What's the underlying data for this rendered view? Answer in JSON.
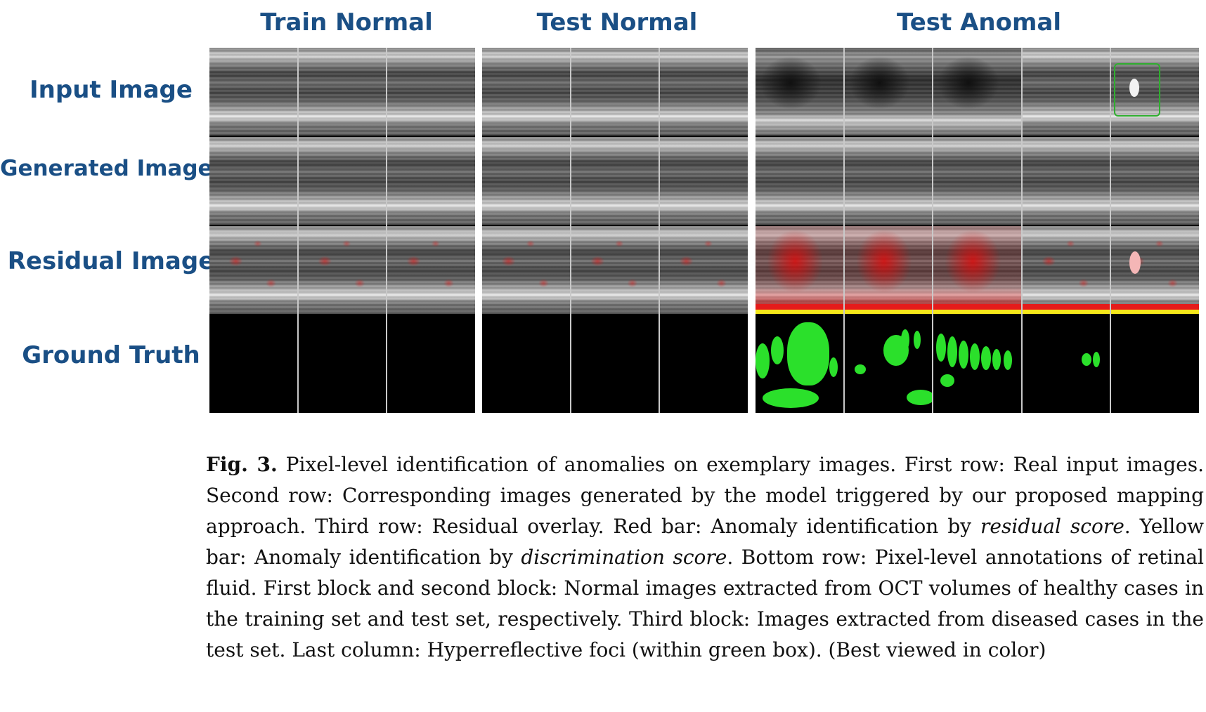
{
  "column_headers": {
    "train_normal": "Train Normal",
    "test_normal": "Test Normal",
    "test_anomal": "Test Anomal"
  },
  "row_labels": {
    "input_image": "Input Image",
    "generated_image": "Generated Image",
    "residual_image": "Residual Image",
    "ground_truth": "Ground Truth"
  },
  "colors": {
    "header_blue": "#1a4f85",
    "red_bar": "#e51b1b",
    "yellow_bar": "#f5e81a",
    "ground_truth_fluid": "#2be02b",
    "green_box": "#2fae2f"
  },
  "caption": {
    "label": "Fig. 3.",
    "part1": " Pixel-level identification of anomalies on exemplary images. First row: Real input images. Second row: Corresponding images generated by the model triggered by our proposed mapping approach. Third row: Residual overlay. Red bar: Anomaly identification by ",
    "residual_score": "residual score",
    "part2": ". Yellow bar: Anomaly identification by ",
    "discrimination_score": "discrimination score",
    "part3": ". Bottom row: Pixel-level annotations of retinal fluid. First block and second block: Normal images extracted from OCT volumes of healthy cases in the training set and test set, respectively. Third block: Images extracted from diseased cases in the test set. Last column: Hyperreflective foci (within green box). (Best viewed in color)"
  }
}
